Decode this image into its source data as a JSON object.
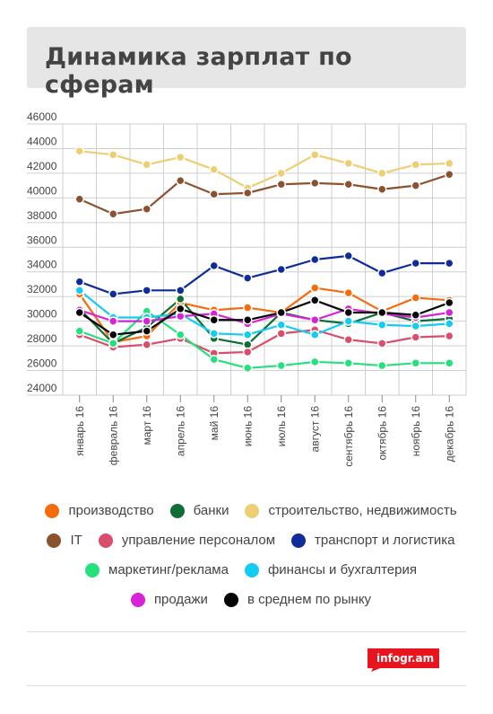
{
  "title": "Динамика зарплат по сферам",
  "chart_data": {
    "type": "line",
    "categories": [
      "январь 16",
      "февраль 16",
      "март 16",
      "апрель 16",
      "май 16",
      "июнь 16",
      "июль 16",
      "август 16",
      "сентябрь 16",
      "октябрь 16",
      "ноябрь 16",
      "декабрь 16"
    ],
    "ylim": [
      24000,
      46000
    ],
    "yticks": [
      24000,
      26000,
      28000,
      30000,
      32000,
      34000,
      36000,
      38000,
      40000,
      42000,
      44000,
      46000
    ],
    "grid": true,
    "legend_position": "bottom",
    "series": [
      {
        "name": "производство",
        "color": "#f56c0e",
        "values": [
          32200,
          28300,
          28800,
          31500,
          30900,
          31100,
          30700,
          32700,
          32300,
          30800,
          31900,
          31700
        ]
      },
      {
        "name": "банки",
        "color": "#0e6e33",
        "values": [
          31000,
          28200,
          29500,
          31800,
          28600,
          28100,
          30700,
          30100,
          29800,
          30700,
          30000,
          30200
        ]
      },
      {
        "name": "строительство, недвижимость",
        "color": "#eece72",
        "values": [
          43800,
          43500,
          42700,
          43300,
          42300,
          40800,
          42000,
          43500,
          42800,
          42000,
          42700,
          42800
        ]
      },
      {
        "name": "IT",
        "color": "#8b5230",
        "values": [
          39900,
          38700,
          39100,
          41400,
          40300,
          40400,
          41100,
          41200,
          41100,
          40700,
          41000,
          41900
        ]
      },
      {
        "name": "управление персоналом",
        "color": "#d94e6a",
        "values": [
          28900,
          27900,
          28100,
          28600,
          27400,
          27500,
          29000,
          29300,
          28500,
          28200,
          28700,
          28800
        ]
      },
      {
        "name": "транспорт и логистика",
        "color": "#0f2c9a",
        "values": [
          33200,
          32200,
          32500,
          32500,
          34500,
          33500,
          34200,
          35000,
          35300,
          33900,
          34700,
          34700
        ]
      },
      {
        "name": "маркетинг/реклама",
        "color": "#24e07d",
        "values": [
          29200,
          28200,
          30800,
          28900,
          26900,
          26200,
          26400,
          26700,
          26600,
          26400,
          26600,
          26600
        ]
      },
      {
        "name": "финансы и бухгалтерия",
        "color": "#14ccf0",
        "values": [
          32500,
          30300,
          30300,
          30600,
          29000,
          28900,
          29700,
          28900,
          30000,
          29700,
          29600,
          29800
        ]
      },
      {
        "name": "продажи",
        "color": "#d822d8",
        "values": [
          30900,
          30000,
          30000,
          30400,
          30600,
          29800,
          30600,
          30100,
          31000,
          30600,
          30300,
          30700
        ]
      },
      {
        "name": "в среднем по рынку",
        "color": "#050505",
        "values": [
          30700,
          28900,
          29200,
          31000,
          30100,
          30100,
          30700,
          31700,
          30700,
          30700,
          30500,
          31500
        ]
      }
    ]
  },
  "legend_rows": [
    [
      0,
      1,
      2
    ],
    [
      3,
      4,
      5
    ],
    [
      6,
      7
    ],
    [
      8,
      9
    ]
  ],
  "brand": {
    "text": "infogr.am",
    "color": "#e8141e"
  }
}
